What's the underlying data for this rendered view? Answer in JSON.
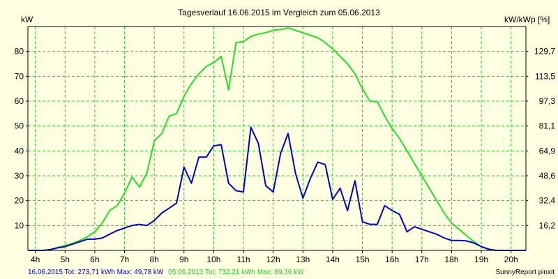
{
  "chart_data": {
    "type": "line",
    "title": "Tagesverlauf 16.06.2015 im Vergleich zum 05.06.2013",
    "ylabel_left": "kW",
    "ylabel_right": "kW/kWp [%]",
    "x_labels": [
      "4h",
      "5h",
      "6h",
      "7h",
      "8h",
      "9h",
      "10h",
      "11h",
      "12h",
      "13h",
      "14h",
      "15h",
      "16h",
      "17h",
      "18h",
      "19h",
      "20h"
    ],
    "xlim": [
      3.75,
      20.5
    ],
    "ylim_left": [
      0,
      90
    ],
    "yticks_left": [
      "10",
      "20",
      "30",
      "40",
      "50",
      "60",
      "70",
      "80"
    ],
    "yticks_left_values": [
      10,
      20,
      30,
      40,
      50,
      60,
      70,
      80
    ],
    "yticks_right": [
      "16,2",
      "32,4",
      "48,6",
      "64,9",
      "81,1",
      "97,3",
      "113,5",
      "129,7"
    ],
    "grid": true,
    "series": [
      {
        "name": "05.06.2013",
        "color": "#22e022",
        "x": [
          3.75,
          4.0,
          4.25,
          4.5,
          4.75,
          5.0,
          5.25,
          5.5,
          5.75,
          6.0,
          6.25,
          6.5,
          6.75,
          7.0,
          7.25,
          7.5,
          7.75,
          8.0,
          8.25,
          8.5,
          8.75,
          9.0,
          9.25,
          9.5,
          9.75,
          10.0,
          10.25,
          10.5,
          10.75,
          11.0,
          11.25,
          11.5,
          11.75,
          12.0,
          12.25,
          12.5,
          12.75,
          13.0,
          13.25,
          13.5,
          13.75,
          14.0,
          14.25,
          14.5,
          14.75,
          15.0,
          15.25,
          15.5,
          15.75,
          16.0,
          16.25,
          16.5,
          16.75,
          17.0,
          17.25,
          17.5,
          17.75,
          18.0,
          18.25,
          18.5,
          18.75,
          19.0,
          19.25,
          19.5,
          19.75,
          20.0,
          20.25,
          20.5
        ],
        "y": [
          0,
          0,
          0,
          0.2,
          1.2,
          2,
          2.8,
          4,
          5.5,
          7.5,
          11,
          16,
          18,
          23,
          29.5,
          25.5,
          31,
          44,
          47,
          54,
          55,
          62,
          67,
          71,
          74,
          75.5,
          78,
          64.5,
          83.5,
          84,
          86,
          87,
          87.5,
          88.5,
          88.8,
          89.4,
          88.5,
          87.5,
          86.5,
          85.5,
          83.5,
          81,
          78,
          75,
          71,
          65,
          60,
          59.8,
          54,
          49,
          45,
          40,
          35,
          30,
          25,
          20,
          15,
          11,
          8.5,
          6,
          3.5,
          1.5,
          0.3,
          0,
          0,
          0,
          0,
          0
        ]
      },
      {
        "name": "16.06.2015",
        "color": "#0000cc",
        "x": [
          3.75,
          4.0,
          4.25,
          4.5,
          4.75,
          5.0,
          5.25,
          5.5,
          5.75,
          6.0,
          6.25,
          6.5,
          6.75,
          7.0,
          7.25,
          7.5,
          7.75,
          8.0,
          8.25,
          8.5,
          8.75,
          9.0,
          9.25,
          9.5,
          9.75,
          10.0,
          10.25,
          10.5,
          10.75,
          11.0,
          11.25,
          11.5,
          11.75,
          12.0,
          12.25,
          12.5,
          12.75,
          13.0,
          13.25,
          13.5,
          13.75,
          14.0,
          14.25,
          14.5,
          14.75,
          15.0,
          15.25,
          15.5,
          15.75,
          16.0,
          16.25,
          16.5,
          16.75,
          17.0,
          17.25,
          17.5,
          17.75,
          18.0,
          18.25,
          18.5,
          18.75,
          19.0,
          19.25,
          19.5,
          19.75,
          20.0,
          20.25,
          20.5
        ],
        "y": [
          0,
          0,
          0,
          0.3,
          1,
          1.5,
          2.5,
          3.5,
          4.5,
          4.5,
          5,
          6.5,
          8,
          9,
          10,
          10.5,
          10,
          12,
          15,
          17,
          19,
          33.5,
          27,
          37.5,
          37.5,
          42,
          42.5,
          27,
          24,
          23.5,
          49.5,
          43,
          26,
          23.5,
          39,
          47,
          31,
          21,
          29,
          35.5,
          34.5,
          20.5,
          25,
          16,
          28,
          11.5,
          10.5,
          10.5,
          18,
          16,
          14.5,
          7.5,
          9.5,
          8.5,
          7.5,
          6.5,
          5,
          4,
          4,
          3.8,
          3,
          1.5,
          0.5,
          0,
          0,
          0,
          0,
          0
        ]
      }
    ],
    "footer": [
      {
        "text": "16.06.2015 Tot: 273,71 kWh Max: 49,78 kW",
        "color": "#0000cc"
      },
      {
        "text": "05.06.2013 Tot: 732,21 kWh Max: 89,36 kW",
        "color": "#22cc22"
      }
    ],
    "credit": "SunnyReport pinxit"
  }
}
